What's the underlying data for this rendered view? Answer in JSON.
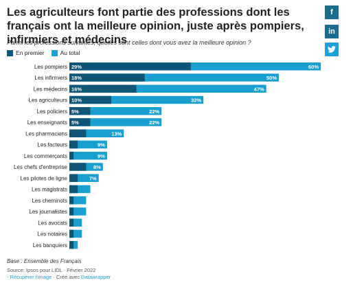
{
  "header": {
    "title": "Les agriculteurs font partie des professions dont les français ont la meilleure opinion, juste après pompiers, infirmiers et médecins",
    "subtitle": "Parmi les professions suivantes, quelles sont celles dont vous avez la meilleure opinion ?"
  },
  "social": [
    {
      "icon": "facebook-icon",
      "glyph": "f",
      "color": "#1b6d8f"
    },
    {
      "icon": "linkedin-icon",
      "glyph": "in",
      "color": "#1b6d8f"
    },
    {
      "icon": "twitter-icon",
      "glyph": "🐦",
      "color": "#1d9fd8"
    }
  ],
  "colors": {
    "en_premier": "#0f5575",
    "au_total": "#1a9fd1"
  },
  "chart_data": {
    "type": "bar",
    "orientation": "horizontal",
    "stacked_overlay": true,
    "categories": [
      "Les pompiers",
      "Les infirmiers",
      "Les médecins",
      "Les agriculteurs",
      "Les policiers",
      "Les enseignants",
      "Les pharmaciens",
      "Les facteurs",
      "Les commerçants",
      "Les chefs d'entreprise",
      "Les pilotes de ligne",
      "Les magistrats",
      "Les cheminots",
      "Les journalistes",
      "Les avocats",
      "Les notaires",
      "Les banquiers"
    ],
    "series": [
      {
        "name": "En premier",
        "values": [
          29,
          18,
          16,
          10,
          5,
          5,
          4,
          2,
          1,
          4,
          2,
          2,
          1,
          1,
          1,
          1,
          1
        ],
        "labels": [
          "29%",
          "18%",
          "16%",
          "10%",
          "5%",
          "5%",
          "",
          "",
          "",
          "",
          "",
          "",
          "",
          "",
          "",
          "",
          ""
        ]
      },
      {
        "name": "Au total",
        "values": [
          60,
          50,
          47,
          32,
          22,
          22,
          13,
          9,
          9,
          8,
          7,
          5,
          4,
          4,
          3,
          3,
          2
        ],
        "labels": [
          "60%",
          "50%",
          "47%",
          "32%",
          "22%",
          "22%",
          "13%",
          "9%",
          "9%",
          "8%",
          "7%",
          "",
          "",
          "",
          "",
          "",
          ""
        ]
      }
    ],
    "xlim": [
      0,
      60
    ]
  },
  "footer": {
    "base": "Base : Ensemble des Français",
    "source": "Source: Ipsos pour LIDL · Février 2022",
    "link_image": "- Récupérer l'image",
    "created_with": " · Créé avec ",
    "datawrapper": "Datawrapper"
  }
}
